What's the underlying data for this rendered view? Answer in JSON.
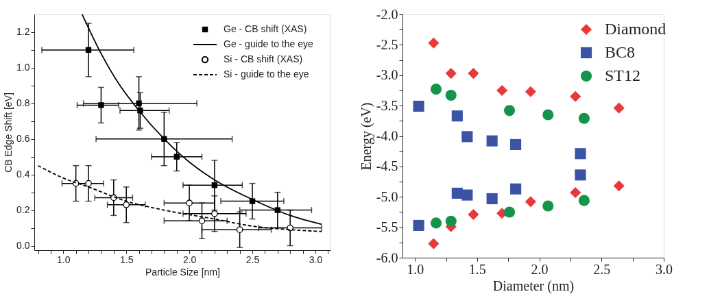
{
  "chart_data": [
    {
      "type": "scatter",
      "xlabel": "Particle Size [nm]",
      "ylabel": "CB Edge Shift [eV]",
      "xlim": [
        0.77,
        3.12
      ],
      "ylim": [
        -0.025,
        1.3
      ],
      "xticks": [
        {
          "value": 0.8,
          "label": null
        },
        {
          "value": 0.9,
          "label": null
        },
        {
          "value": 1.0,
          "label": "1.0"
        },
        {
          "value": 1.1,
          "label": null
        },
        {
          "value": 1.2,
          "label": null
        },
        {
          "value": 1.3,
          "label": null
        },
        {
          "value": 1.4,
          "label": null
        },
        {
          "value": 1.5,
          "label": "1.5"
        },
        {
          "value": 1.6,
          "label": null
        },
        {
          "value": 1.7,
          "label": null
        },
        {
          "value": 1.8,
          "label": null
        },
        {
          "value": 1.9,
          "label": null
        },
        {
          "value": 2.0,
          "label": "2.0"
        },
        {
          "value": 2.1,
          "label": null
        },
        {
          "value": 2.2,
          "label": null
        },
        {
          "value": 2.3,
          "label": null
        },
        {
          "value": 2.4,
          "label": null
        },
        {
          "value": 2.5,
          "label": "2.5"
        },
        {
          "value": 2.6,
          "label": null
        },
        {
          "value": 2.7,
          "label": null
        },
        {
          "value": 2.8,
          "label": null
        },
        {
          "value": 2.9,
          "label": null
        },
        {
          "value": 3.0,
          "label": "3.0"
        },
        {
          "value": 3.1,
          "label": null
        }
      ],
      "yticks": [
        {
          "value": 0.0,
          "label": "0.0"
        },
        {
          "value": 0.1,
          "label": null
        },
        {
          "value": 0.2,
          "label": "0.2"
        },
        {
          "value": 0.3,
          "label": null
        },
        {
          "value": 0.4,
          "label": "0.4"
        },
        {
          "value": 0.5,
          "label": null
        },
        {
          "value": 0.6,
          "label": "0.6"
        },
        {
          "value": 0.7,
          "label": null
        },
        {
          "value": 0.8,
          "label": "0.8"
        },
        {
          "value": 0.9,
          "label": null
        },
        {
          "value": 1.0,
          "label": "1.0"
        },
        {
          "value": 1.1,
          "label": null
        },
        {
          "value": 1.2,
          "label": "1.2"
        }
      ],
      "grid": false,
      "legend": "top right",
      "series": [
        {
          "name": "Ge - CB shift (XAS)",
          "type": "scatter",
          "marker": "square",
          "color": "#000000",
          "x": [
            1.2,
            1.3,
            1.6,
            1.61,
            1.8,
            1.9,
            2.2,
            2.5,
            2.7
          ],
          "values": [
            1.1,
            0.79,
            0.8,
            0.76,
            0.6,
            0.5,
            0.34,
            0.25,
            0.2
          ],
          "errors": [
            [
              0.95,
              1.25
            ],
            [
              0.69,
              0.89
            ],
            [
              0.65,
              0.95
            ],
            [
              0.66,
              0.86
            ],
            [
              0.45,
              0.75
            ],
            [
              0.42,
              0.58
            ],
            [
              0.2,
              0.48
            ],
            [
              0.15,
              0.35
            ],
            [
              0.1,
              0.3
            ]
          ],
          "xerrors": [
            [
              0.83,
              1.56
            ],
            [
              1.11,
              1.44
            ],
            [
              1.16,
              2.06
            ],
            [
              1.45,
              1.84
            ],
            [
              1.26,
              2.34
            ],
            [
              1.7,
              2.1
            ],
            [
              1.95,
              2.42
            ],
            [
              2.25,
              2.75
            ],
            [
              2.4,
              2.97
            ]
          ]
        },
        {
          "name": "Ge - guide to the eye",
          "type": "line",
          "marker": "none",
          "line_style": "solid",
          "color": "#000000",
          "x": [
            1.15,
            1.3,
            1.45,
            1.6,
            1.8,
            2.0,
            2.2,
            2.5,
            2.8,
            3.05
          ],
          "values": [
            1.3,
            1.08,
            0.9,
            0.76,
            0.6,
            0.47,
            0.37,
            0.26,
            0.17,
            0.12
          ]
        },
        {
          "name": "Si - CB shift (XAS)",
          "type": "scatter",
          "marker": "circle",
          "color": "#000000",
          "x": [
            1.1,
            1.2,
            1.4,
            1.5,
            2.0,
            2.1,
            2.2,
            2.4,
            2.8
          ],
          "values": [
            0.35,
            0.35,
            0.27,
            0.23,
            0.24,
            0.14,
            0.18,
            0.09,
            0.1
          ],
          "errors": [
            [
              0.25,
              0.45
            ],
            [
              0.25,
              0.45
            ],
            [
              0.17,
              0.37
            ],
            [
              0.13,
              0.33
            ],
            [
              0.14,
              0.34
            ],
            [
              0.04,
              0.24
            ],
            [
              0.08,
              0.28
            ],
            [
              -0.01,
              0.19
            ],
            [
              0.0,
              0.2
            ]
          ],
          "xerrors": [
            [
              0.99,
              1.2
            ],
            [
              1.1,
              1.32
            ],
            [
              1.25,
              1.55
            ],
            [
              1.35,
              1.65
            ],
            [
              1.8,
              2.2
            ],
            [
              1.8,
              2.3
            ],
            [
              1.95,
              2.45
            ],
            [
              2.1,
              2.65
            ],
            [
              2.55,
              3.05
            ]
          ]
        },
        {
          "name": "Si - guide to the eye",
          "type": "line",
          "marker": "none",
          "line_style": "dashed",
          "color": "#000000",
          "x": [
            0.8,
            1.0,
            1.2,
            1.5,
            1.8,
            2.2,
            2.5,
            2.8,
            3.05
          ],
          "values": [
            0.45,
            0.38,
            0.33,
            0.25,
            0.2,
            0.15,
            0.11,
            0.09,
            0.08
          ]
        }
      ]
    },
    {
      "type": "scatter",
      "xlabel": "Diameter (nm)",
      "ylabel": "Energy (eV)",
      "xlim": [
        0.9,
        3.0
      ],
      "ylim": [
        -6.0,
        -2.0
      ],
      "xticks": [
        {
          "value": 1.0,
          "label": "1.0"
        },
        {
          "value": 1.25,
          "label": null
        },
        {
          "value": 1.5,
          "label": "1.5"
        },
        {
          "value": 1.75,
          "label": null
        },
        {
          "value": 2.0,
          "label": "2.0"
        },
        {
          "value": 2.25,
          "label": null
        },
        {
          "value": 2.5,
          "label": "2.5"
        },
        {
          "value": 2.75,
          "label": null
        },
        {
          "value": 3.0,
          "label": "3.0"
        }
      ],
      "yticks": [
        {
          "value": -6.0,
          "label": "-6.0"
        },
        {
          "value": -5.75,
          "label": null
        },
        {
          "value": -5.5,
          "label": "-5.5"
        },
        {
          "value": -5.25,
          "label": null
        },
        {
          "value": -5.0,
          "label": "-5.0"
        },
        {
          "value": -4.75,
          "label": null
        },
        {
          "value": -4.5,
          "label": "-4.5"
        },
        {
          "value": -4.25,
          "label": null
        },
        {
          "value": -4.0,
          "label": "-4.0"
        },
        {
          "value": -3.75,
          "label": null
        },
        {
          "value": -3.5,
          "label": "-3.5"
        },
        {
          "value": -3.25,
          "label": null
        },
        {
          "value": -3.0,
          "label": "-3.0"
        },
        {
          "value": -2.75,
          "label": null
        },
        {
          "value": -2.5,
          "label": "-2.5"
        },
        {
          "value": -2.25,
          "label": null
        },
        {
          "value": -2.0,
          "label": "-2.0"
        }
      ],
      "grid": false,
      "legend": "top right",
      "series": [
        {
          "name": "Diamond",
          "marker": "diamond",
          "color": "#e8393a",
          "x": [
            1.15,
            1.29,
            1.47,
            1.7,
            1.93,
            2.29,
            2.64,
            1.15,
            1.29,
            1.47,
            1.7,
            1.93,
            2.29,
            2.64
          ],
          "values": [
            -2.47,
            -2.97,
            -2.97,
            -3.25,
            -3.27,
            -3.35,
            -3.54,
            -5.77,
            -5.49,
            -5.29,
            -5.27,
            -5.08,
            -4.93,
            -4.82
          ]
        },
        {
          "name": "BC8",
          "marker": "square",
          "color": "#3a53a4",
          "x": [
            1.03,
            1.34,
            1.42,
            1.62,
            1.81,
            2.33,
            2.33,
            1.03,
            1.34,
            1.42,
            1.62,
            1.81
          ],
          "values": [
            -3.51,
            -3.67,
            -4.01,
            -4.08,
            -4.14,
            -4.29,
            -4.64,
            -5.47,
            -4.94,
            -4.97,
            -5.03,
            -4.87
          ]
        },
        {
          "name": "ST12",
          "marker": "circle",
          "color": "#14934a",
          "x": [
            1.17,
            1.29,
            1.76,
            2.07,
            2.36,
            1.17,
            1.29,
            1.76,
            2.07,
            2.36
          ],
          "values": [
            -3.23,
            -3.33,
            -3.58,
            -3.65,
            -3.71,
            -5.43,
            -5.4,
            -5.25,
            -5.15,
            -5.06
          ]
        }
      ]
    }
  ]
}
